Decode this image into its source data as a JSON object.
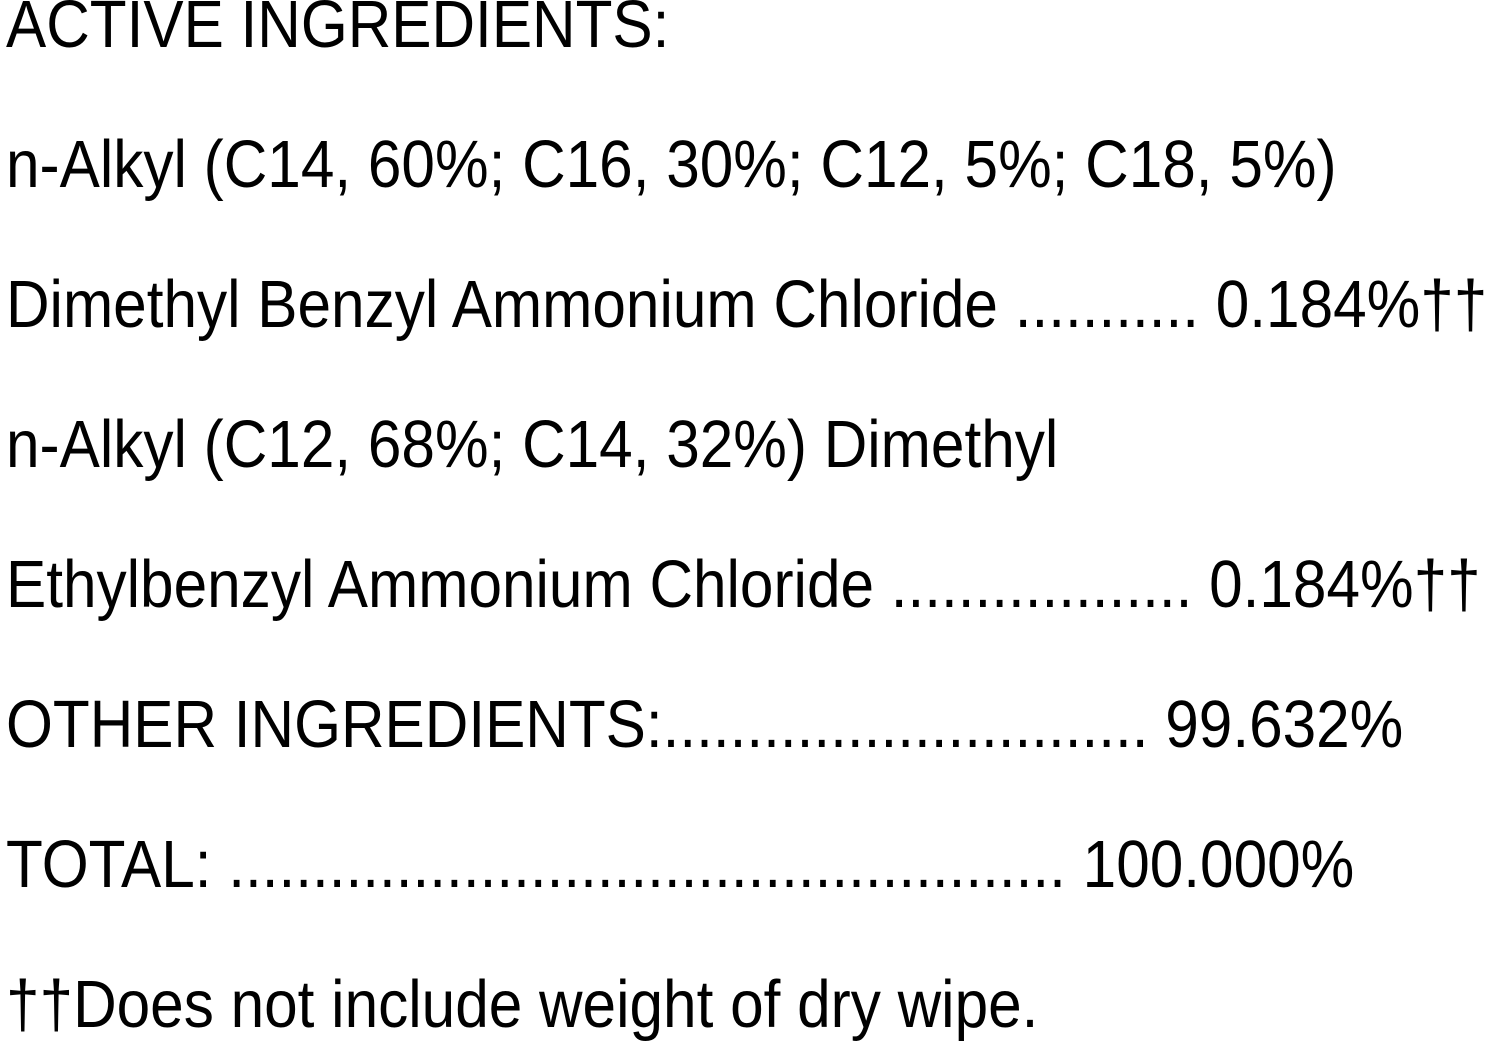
{
  "label": {
    "title": "ACTIVE INGREDIENTS:",
    "lines": [
      {
        "text": "ACTIVE INGREDIENTS:"
      },
      {
        "text": "n-Alkyl (C14, 60%; C16, 30%; C12, 5%; C18, 5%)"
      },
      {
        "text": "Dimethyl Benzyl Ammonium Chloride ........... 0.184%††"
      },
      {
        "text": "n-Alkyl (C12, 68%; C14, 32%) Dimethyl"
      },
      {
        "text": "Ethylbenzyl Ammonium Chloride .................. 0.184%††"
      },
      {
        "text": "OTHER INGREDIENTS:............................. 99.632%"
      },
      {
        "text": "TOTAL: .................................................. 100.000%"
      },
      {
        "text": "††Does not include weight of dry wipe."
      }
    ],
    "entries": {
      "active_ingredient_1": {
        "name": "n-Alkyl (C14, 60%; C16, 30%; C12, 5%; C18, 5%) Dimethyl Benzyl Ammonium Chloride",
        "value": "0.184%",
        "footnote_marker": "††"
      },
      "active_ingredient_2": {
        "name": "n-Alkyl (C12, 68%; C14, 32%) Dimethyl Ethylbenzyl Ammonium Chloride",
        "value": "0.184%",
        "footnote_marker": "††"
      },
      "other_ingredients": {
        "name": "OTHER INGREDIENTS",
        "value": "99.632%"
      },
      "total": {
        "name": "TOTAL",
        "value": "100.000%"
      }
    },
    "footnote": "††Does not include weight of dry wipe.",
    "colors": {
      "text": "#000000",
      "background": "#ffffff"
    }
  }
}
